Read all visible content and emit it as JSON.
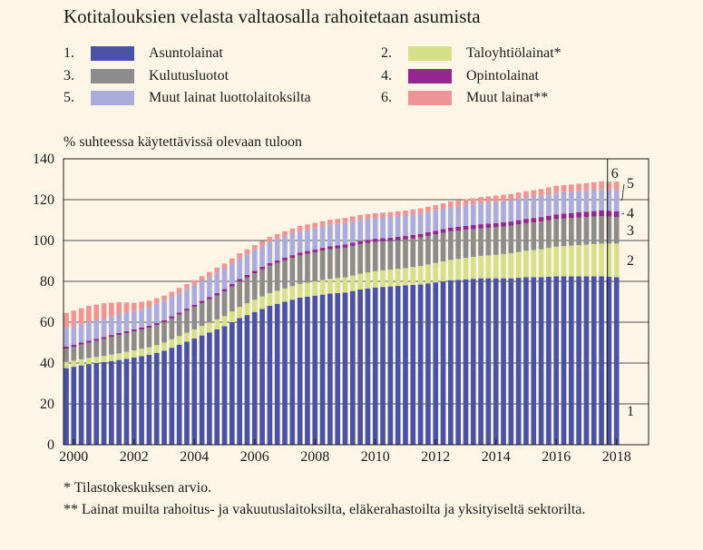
{
  "title": "Kotitalouksien velasta valtaosalla rahoitetaan asumista",
  "legend": [
    {
      "num": "1.",
      "label": "Asuntolainat",
      "color": "#4a52a3"
    },
    {
      "num": "2.",
      "label": "Taloyhtiölainat*",
      "color": "#d6df8a"
    },
    {
      "num": "3.",
      "label": "Kulutusluotot",
      "color": "#8c8c8c"
    },
    {
      "num": "4.",
      "label": "Opintolainat",
      "color": "#93278f"
    },
    {
      "num": "5.",
      "label": "Muut lainat luottolaitoksilta",
      "color": "#a9acdc"
    },
    {
      "num": "6.",
      "label": "Muut lainat**",
      "color": "#ef9497"
    }
  ],
  "y_axis_label": "% suhteessa käytettävissä olevaan tuloon",
  "footnotes": [
    "* Tilastokeskuksen arvio.",
    "** Lainat muilta rahoitus- ja vakuutuslaitoksilta, eläkerahastoilta ja yksityiseltä sektorilta."
  ],
  "chart_data": {
    "type": "bar",
    "stacked": true,
    "ylim": [
      0,
      140
    ],
    "yticks": [
      0,
      20,
      40,
      60,
      80,
      100,
      120,
      140
    ],
    "xticks": [
      "2000",
      "2002",
      "2004",
      "2006",
      "2008",
      "2010",
      "2012",
      "2014",
      "2016",
      "2018"
    ],
    "series_end_labels": [
      "1",
      "2",
      "3",
      "4",
      "5",
      "6"
    ],
    "x_start": 1999.75,
    "x_step": 0.25,
    "series": [
      {
        "name": "Asuntolainat",
        "color": "#4a52a3",
        "keys": [
          [
            1999.75,
            37.5
          ],
          [
            2000.5,
            39.5
          ],
          [
            2001.5,
            41.5
          ],
          [
            2002.5,
            44
          ],
          [
            2003,
            46
          ],
          [
            2003.5,
            49
          ],
          [
            2004,
            52
          ],
          [
            2004.5,
            55
          ],
          [
            2005,
            58
          ],
          [
            2005.5,
            62
          ],
          [
            2006,
            65
          ],
          [
            2006.5,
            68
          ],
          [
            2007,
            70
          ],
          [
            2007.5,
            72
          ],
          [
            2008,
            73
          ],
          [
            2008.5,
            74
          ],
          [
            2009,
            74.5
          ],
          [
            2009.5,
            76
          ],
          [
            2010,
            77
          ],
          [
            2010.5,
            77.5
          ],
          [
            2011,
            78
          ],
          [
            2011.5,
            78.5
          ],
          [
            2012,
            79.5
          ],
          [
            2012.5,
            80.5
          ],
          [
            2013,
            81
          ],
          [
            2013.5,
            81.5
          ],
          [
            2014,
            81.5
          ],
          [
            2014.5,
            81.5
          ],
          [
            2015,
            82
          ],
          [
            2015.5,
            82
          ],
          [
            2016,
            82.5
          ],
          [
            2016.5,
            82.5
          ],
          [
            2017,
            82.5
          ],
          [
            2017.5,
            82.5
          ],
          [
            2018,
            82
          ]
        ]
      },
      {
        "name": "Taloyhtiölainat*",
        "color": "#d6df8a",
        "keys": [
          [
            1999.75,
            3
          ],
          [
            2001,
            3
          ],
          [
            2002,
            3.5
          ],
          [
            2003,
            4
          ],
          [
            2004,
            4.5
          ],
          [
            2005,
            5
          ],
          [
            2006,
            6
          ],
          [
            2007,
            6.5
          ],
          [
            2008,
            7
          ],
          [
            2009,
            7.5
          ],
          [
            2010,
            8
          ],
          [
            2011,
            8.5
          ],
          [
            2012,
            9.5
          ],
          [
            2013,
            10.5
          ],
          [
            2014,
            11.5
          ],
          [
            2015,
            13
          ],
          [
            2016,
            14.5
          ],
          [
            2017,
            15.5
          ],
          [
            2018,
            16.5
          ]
        ]
      },
      {
        "name": "Kulutusluotot",
        "color": "#8c8c8c",
        "keys": [
          [
            1999.75,
            6.5
          ],
          [
            2000.5,
            7.5
          ],
          [
            2001.5,
            9
          ],
          [
            2002.5,
            9.5
          ],
          [
            2003.5,
            10.5
          ],
          [
            2004.5,
            11.5
          ],
          [
            2005.5,
            12.5
          ],
          [
            2006.5,
            13.5
          ],
          [
            2007.5,
            14
          ],
          [
            2008.5,
            14.5
          ],
          [
            2009.5,
            14.5
          ],
          [
            2010.5,
            14
          ],
          [
            2011.5,
            14
          ],
          [
            2012.5,
            14
          ],
          [
            2013.5,
            13.5
          ],
          [
            2014.5,
            13.5
          ],
          [
            2015.5,
            13.5
          ],
          [
            2016.5,
            13.5
          ],
          [
            2017.5,
            13.5
          ],
          [
            2018,
            13
          ]
        ]
      },
      {
        "name": "Opintolainat",
        "color": "#93278f",
        "keys": [
          [
            1999.75,
            1
          ],
          [
            2001,
            1
          ],
          [
            2002,
            1
          ],
          [
            2003,
            1
          ],
          [
            2004,
            1
          ],
          [
            2005,
            1.2
          ],
          [
            2006,
            1.2
          ],
          [
            2007,
            1.3
          ],
          [
            2008,
            1.4
          ],
          [
            2009,
            1.5
          ],
          [
            2010,
            1.6
          ],
          [
            2011,
            1.7
          ],
          [
            2012,
            1.8
          ],
          [
            2013,
            1.9
          ],
          [
            2014,
            2
          ],
          [
            2015,
            2.1
          ],
          [
            2016,
            2.3
          ],
          [
            2017,
            2.6
          ],
          [
            2018,
            2.8
          ]
        ]
      },
      {
        "name": "Muut lainat luottolaitoksilta",
        "color": "#a9acdc",
        "keys": [
          [
            1999.75,
            9
          ],
          [
            2001,
            9
          ],
          [
            2002,
            9
          ],
          [
            2003,
            9.5
          ],
          [
            2004,
            9.5
          ],
          [
            2005,
            10
          ],
          [
            2006,
            10
          ],
          [
            2007,
            10.5
          ],
          [
            2008,
            10.5
          ],
          [
            2009,
            10.5
          ],
          [
            2010,
            10
          ],
          [
            2011,
            10
          ],
          [
            2012,
            10
          ],
          [
            2013,
            10
          ],
          [
            2014,
            10.5
          ],
          [
            2015,
            10.5
          ],
          [
            2016,
            10.5
          ],
          [
            2017,
            10.5
          ],
          [
            2018,
            10.5
          ]
        ]
      },
      {
        "name": "Muut lainat**",
        "color": "#ef9497",
        "keys": [
          [
            1999.75,
            7.5
          ],
          [
            2000.5,
            8
          ],
          [
            2001,
            7.5
          ],
          [
            2001.5,
            6
          ],
          [
            2002,
            4
          ],
          [
            2002.5,
            3
          ],
          [
            2003,
            2.5
          ],
          [
            2004,
            2.5
          ],
          [
            2005,
            2.5
          ],
          [
            2006,
            2.5
          ],
          [
            2007,
            2.5
          ],
          [
            2008,
            2.5
          ],
          [
            2009,
            2.5
          ],
          [
            2010,
            2.5
          ],
          [
            2011,
            2.5
          ],
          [
            2012,
            2.5
          ],
          [
            2013,
            3
          ],
          [
            2014,
            3
          ],
          [
            2015,
            3
          ],
          [
            2016,
            3.5
          ],
          [
            2017,
            3.5
          ],
          [
            2018,
            4
          ]
        ]
      }
    ]
  }
}
